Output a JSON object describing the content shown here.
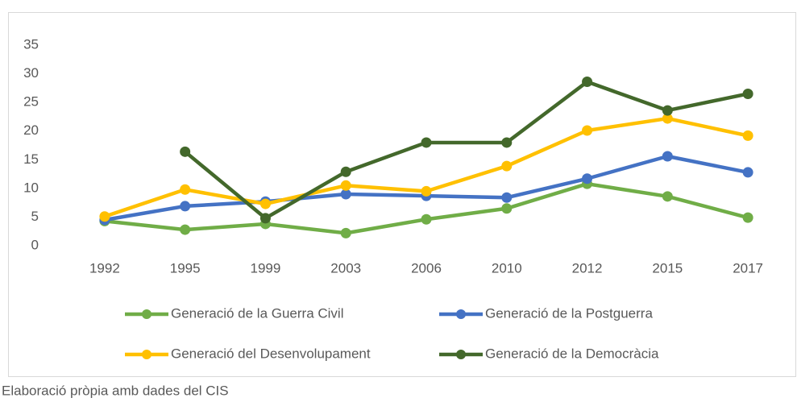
{
  "chart_data": {
    "type": "line",
    "categories": [
      "1992",
      "1995",
      "1999",
      "2003",
      "2006",
      "2010",
      "2012",
      "2015",
      "2017"
    ],
    "series": [
      {
        "name": "Generació de la Guerra Civil",
        "color": "#70ad47",
        "values": [
          4.3,
          2.8,
          3.8,
          2.2,
          4.6,
          6.5,
          10.8,
          8.6,
          4.9
        ]
      },
      {
        "name": "Generació de la Postguerra",
        "color": "#4472c4",
        "values": [
          4.5,
          6.9,
          7.7,
          9.0,
          8.7,
          8.4,
          11.7,
          15.6,
          12.8
        ]
      },
      {
        "name": "Generació del Desenvolupament",
        "color": "#ffc000",
        "values": [
          5.1,
          9.8,
          7.3,
          10.5,
          9.5,
          13.9,
          20.1,
          22.2,
          19.2
        ]
      },
      {
        "name": "Generació de la Democràcia",
        "color": "#43682b",
        "values": [
          null,
          16.4,
          4.8,
          12.9,
          18.0,
          18.0,
          28.6,
          23.6,
          26.5
        ]
      }
    ],
    "ylim": [
      0,
      35
    ],
    "yticks": [
      0,
      5,
      10,
      15,
      20,
      25,
      30,
      35
    ],
    "legend": "bottom",
    "source": "Elaboració pròpia amb dades del CIS"
  }
}
